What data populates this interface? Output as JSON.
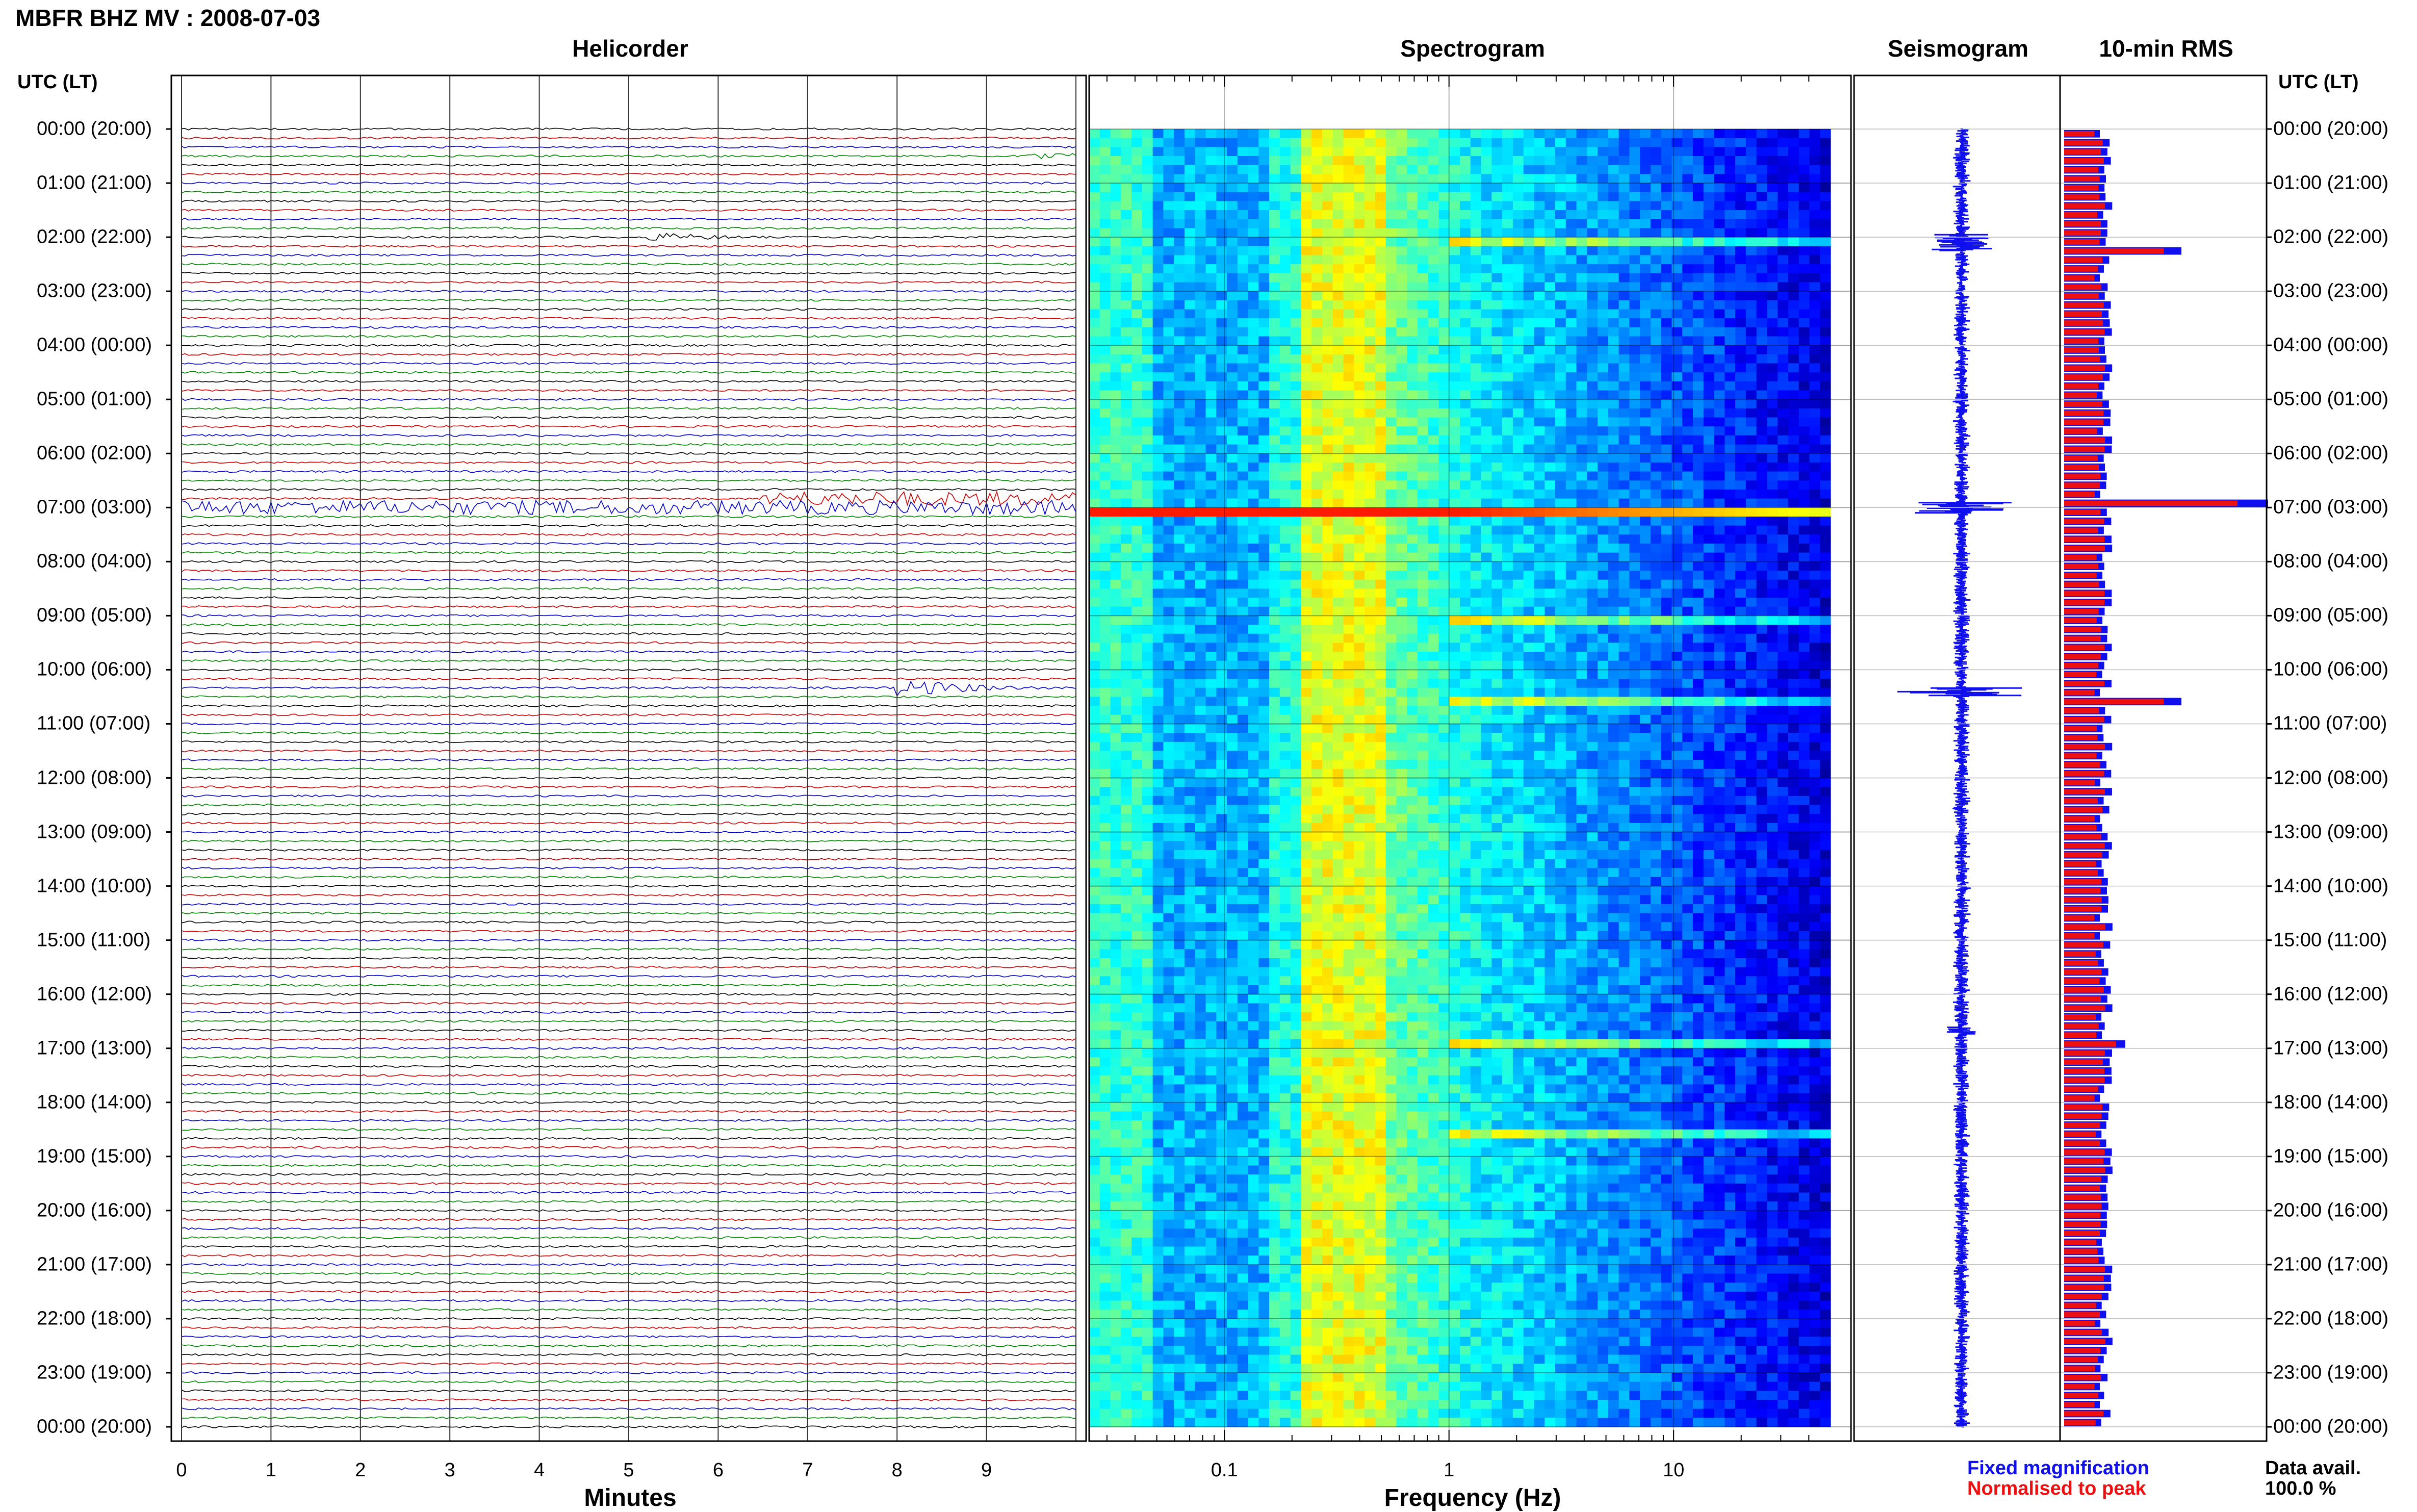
{
  "title": "MBFR BHZ MV : 2008-07-03",
  "panels": {
    "helicorder": "Helicorder",
    "spectrogram": "Spectrogram",
    "seismogram": "Seismogram",
    "rms": "10-min RMS"
  },
  "time_axis_label": "UTC (LT)",
  "time_labels": [
    "00:00 (20:00)",
    "01:00 (21:00)",
    "02:00 (22:00)",
    "03:00 (23:00)",
    "04:00 (00:00)",
    "05:00 (01:00)",
    "06:00 (02:00)",
    "07:00 (03:00)",
    "08:00 (04:00)",
    "09:00 (05:00)",
    "10:00 (06:00)",
    "11:00 (07:00)",
    "12:00 (08:00)",
    "13:00 (09:00)",
    "14:00 (10:00)",
    "15:00 (11:00)",
    "16:00 (12:00)",
    "17:00 (13:00)",
    "18:00 (14:00)",
    "19:00 (15:00)",
    "20:00 (16:00)",
    "21:00 (17:00)",
    "22:00 (18:00)",
    "23:00 (19:00)",
    "00:00 (20:00)"
  ],
  "helicorder_xlabel": "Minutes",
  "minute_ticks": [
    "0",
    "1",
    "2",
    "3",
    "4",
    "5",
    "6",
    "7",
    "8",
    "9"
  ],
  "spectrogram_xlabel": "Frequency (Hz)",
  "freq_ticks": [
    "0.1",
    "1",
    "10"
  ],
  "legend": {
    "fixed": "Fixed magnification",
    "normalised": "Normalised to peak",
    "fixed_color": "#1010ee",
    "normalised_color": "#ee1010"
  },
  "data_availability": {
    "label": "Data avail.",
    "value": "100.0 %"
  },
  "chart_data": {
    "type": "heatmap",
    "title": "MBFR BHZ MV : 2008-07-03",
    "helicorder": {
      "minutes_per_line": 10,
      "lines": 144,
      "trace_colors": [
        "#000000",
        "#cc0000",
        "#0000cc",
        "#008800"
      ],
      "events": [
        {
          "utc": "00:30",
          "minute": 9.6,
          "amplitude": "medium"
        },
        {
          "utc": "02:00",
          "minute": 5.4,
          "amplitude": "medium"
        },
        {
          "utc": "06:50",
          "minute_start": 6.5,
          "minute_end": 10,
          "amplitude": "high"
        },
        {
          "utc": "07:00",
          "minute_start": 0,
          "minute_end": 10,
          "amplitude": "high"
        },
        {
          "utc": "10:20",
          "minute": 8.2,
          "amplitude": "large"
        }
      ]
    },
    "spectrogram": {
      "x_scale": "log",
      "xlim_hz": [
        0.025,
        50
      ],
      "colormap": "jet",
      "dominant_band_hz": [
        0.2,
        0.5
      ],
      "bright_lines_utc": [
        "02:00",
        "07:00",
        "09:00",
        "10:30",
        "16:50",
        "18:30"
      ]
    },
    "rms": {
      "interval_minutes": 10,
      "peaks": [
        {
          "utc": "02:10",
          "level": "high"
        },
        {
          "utc": "06:50",
          "level": "peak"
        },
        {
          "utc": "10:30",
          "level": "high"
        },
        {
          "utc": "16:50",
          "level": "medium"
        }
      ]
    }
  }
}
